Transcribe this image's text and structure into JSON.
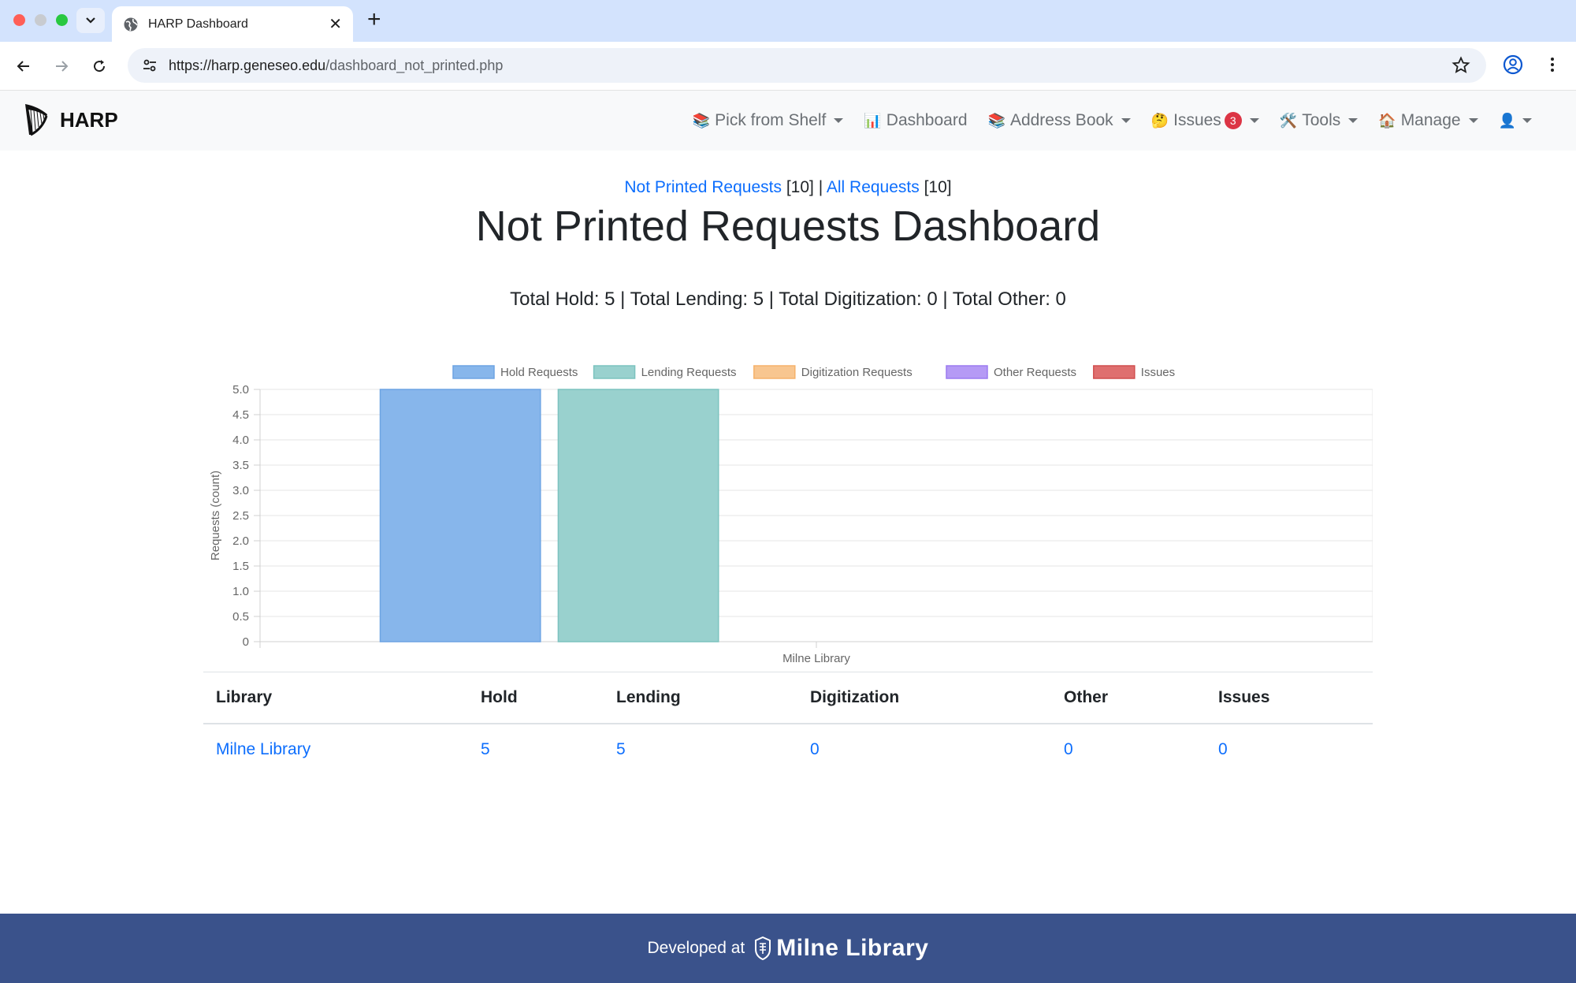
{
  "browser": {
    "tab_title": "HARP Dashboard",
    "url_host": "https://harp.geneseo.edu",
    "url_path": "/dashboard_not_printed.php"
  },
  "navbar": {
    "brand": "HARP",
    "items": [
      {
        "emoji": "📚",
        "label": "Pick from Shelf",
        "dropdown": true
      },
      {
        "emoji": "📊",
        "label": "Dashboard",
        "dropdown": false
      },
      {
        "emoji": "📚",
        "label": "Address Book",
        "dropdown": true
      },
      {
        "emoji": "🤔",
        "label": "Issues",
        "dropdown": true,
        "badge": "3"
      },
      {
        "emoji": "🛠️",
        "label": "Tools",
        "dropdown": true
      },
      {
        "emoji": "🏠",
        "label": "Manage",
        "dropdown": true
      },
      {
        "emoji": "👤",
        "label": "",
        "dropdown": true
      }
    ]
  },
  "subnav": {
    "not_printed_label": "Not Printed Requests",
    "not_printed_count": "[10]",
    "separator": "|",
    "all_label": "All Requests",
    "all_count": "[10]"
  },
  "page_title": "Not Printed Requests Dashboard",
  "totals": "Total Hold: 5 | Total Lending: 5 | Total Digitization: 0 | Total Other: 0",
  "chart_data": {
    "type": "bar",
    "categories": [
      "Milne Library"
    ],
    "series": [
      {
        "name": "Hold Requests",
        "values": [
          5
        ],
        "color": "#87b6eb",
        "border": "#6da4e3"
      },
      {
        "name": "Lending Requests",
        "values": [
          5
        ],
        "color": "#99d1ce",
        "border": "#7cc3bf"
      },
      {
        "name": "Digitization Requests",
        "values": [
          0
        ],
        "color": "#f8c690",
        "border": "#f5b26b"
      },
      {
        "name": "Other Requests",
        "values": [
          0
        ],
        "color": "#b59af5",
        "border": "#9b7bf0"
      },
      {
        "name": "Issues",
        "values": [
          0
        ],
        "color": "#df6f6f",
        "border": "#d14f4f"
      }
    ],
    "ylabel": "Requests (count)",
    "xlabel": "",
    "ylim": [
      0,
      5
    ],
    "yticks": [
      "0",
      "0.5",
      "1.0",
      "1.5",
      "2.0",
      "2.5",
      "3.0",
      "3.5",
      "4.0",
      "4.5",
      "5.0"
    ],
    "legend": "top",
    "grid": true
  },
  "table": {
    "headers": [
      "Library",
      "Hold",
      "Lending",
      "Digitization",
      "Other",
      "Issues"
    ],
    "rows": [
      [
        "Milne Library",
        "5",
        "5",
        "0",
        "0",
        "0"
      ]
    ]
  },
  "footer": {
    "text": "Developed at",
    "logo_name": "Milne Library"
  }
}
